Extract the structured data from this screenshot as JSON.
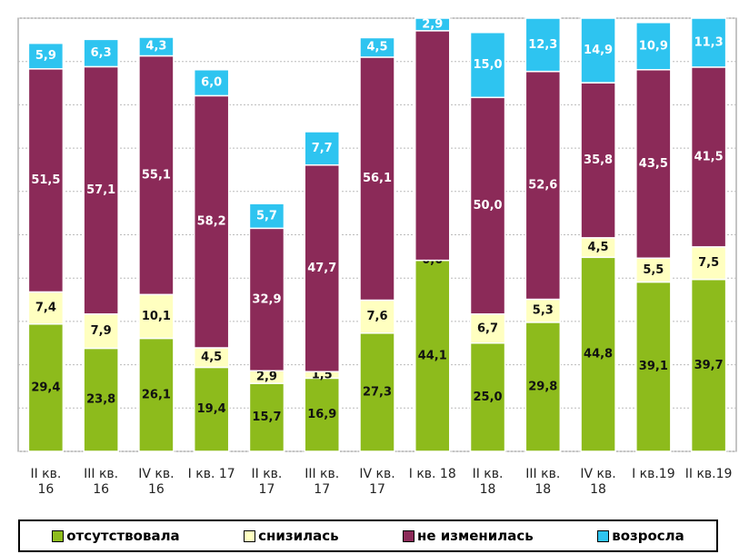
{
  "chart_data": {
    "type": "stacked_bar",
    "categories": [
      "II кв. 16",
      "III кв. 16",
      "IV кв. 16",
      "I кв. 17",
      "II кв. 17",
      "III кв. 17",
      "IV кв. 17",
      "I кв. 18",
      "II кв. 18",
      "III кв. 18",
      "IV кв. 18",
      "I кв.19",
      "II кв.19"
    ],
    "series": [
      {
        "name": "отсутствовала",
        "color": "#8dbb1c",
        "values": [
          29.4,
          23.8,
          26.1,
          19.4,
          15.7,
          16.9,
          27.3,
          44.1,
          25.0,
          29.8,
          44.8,
          39.1,
          39.7
        ],
        "value_labels": [
          "29,4",
          "23,8",
          "26,1",
          "19,4",
          "15,7",
          "16,9",
          "27,3",
          "44,1",
          "25,0",
          "29,8",
          "44,8",
          "39,1",
          "39,7"
        ]
      },
      {
        "name": "снизилась",
        "color": "#ffffc0",
        "values": [
          7.4,
          7.9,
          10.1,
          4.5,
          2.9,
          1.5,
          7.6,
          0.0,
          6.7,
          5.3,
          4.5,
          5.5,
          7.5
        ],
        "value_labels": [
          "7,4",
          "7,9",
          "10,1",
          "4,5",
          "2,9",
          "1,5",
          "7,6",
          "0,0",
          "6,7",
          "5,3",
          "4,5",
          "5,5",
          "7,5"
        ]
      },
      {
        "name": "не изменилась",
        "color": "#8b2a58",
        "values": [
          51.5,
          57.1,
          55.1,
          58.2,
          32.9,
          47.7,
          56.1,
          53.0,
          50.0,
          52.6,
          35.8,
          43.5,
          41.5
        ],
        "value_labels": [
          "51,5",
          "57,1",
          "55,1",
          "58,2",
          "32,9",
          "47,7",
          "56,1",
          null,
          "50,0",
          "52,6",
          "35,8",
          "43,5",
          "41,5"
        ]
      },
      {
        "name": "возросла",
        "color": "#2ec4f0",
        "values": [
          5.9,
          6.3,
          4.3,
          6.0,
          5.7,
          7.7,
          4.5,
          2.9,
          15.0,
          12.3,
          14.9,
          10.9,
          11.3
        ],
        "value_labels": [
          "5,9",
          "6,3",
          "4,3",
          "6,0",
          "5,7",
          "7,7",
          "4,5",
          "2,9",
          "15,0",
          "12,3",
          "14,9",
          "10,9",
          "11,3"
        ]
      }
    ],
    "ylim": [
      0,
      100
    ],
    "yticks": [
      0,
      10,
      20,
      30,
      40,
      50,
      60,
      70,
      80,
      90,
      100
    ],
    "grid": true
  }
}
